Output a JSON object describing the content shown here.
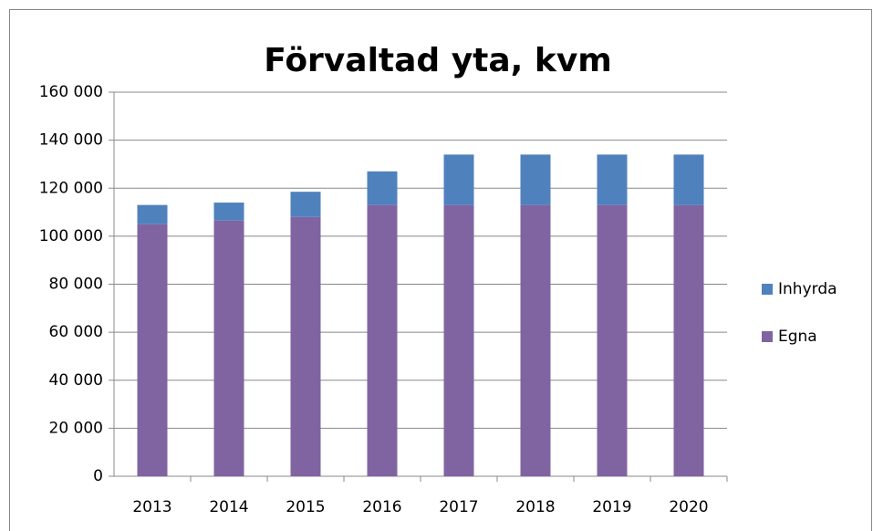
{
  "chart_data": {
    "type": "stacked_bar",
    "title": "Förvaltad yta, kvm",
    "categories": [
      "2013",
      "2014",
      "2015",
      "2016",
      "2017",
      "2018",
      "2019",
      "2020"
    ],
    "series": [
      {
        "name": "Egna",
        "color": "#8064a2",
        "values": [
          105000,
          106500,
          108000,
          113000,
          113000,
          113000,
          113000,
          113000
        ]
      },
      {
        "name": "Inhyrda",
        "color": "#4f81bd",
        "values": [
          8000,
          7500,
          10500,
          14000,
          21000,
          21000,
          21000,
          21000
        ]
      }
    ],
    "ylim": [
      0,
      160000
    ],
    "yticks": [
      0,
      {
        "value": 20000,
        "label": "20 000"
      },
      {
        "value": 40000,
        "label": "40 000"
      },
      {
        "value": 60000,
        "label": "60 000"
      },
      {
        "value": 80000,
        "label": "80 000"
      },
      {
        "value": 100000,
        "label": "100 000"
      },
      {
        "value": 120000,
        "label": "120 000"
      },
      {
        "value": 140000,
        "label": "140 000"
      },
      {
        "value": 160000,
        "label": "160 000"
      }
    ],
    "grid": true,
    "legend": "right"
  }
}
